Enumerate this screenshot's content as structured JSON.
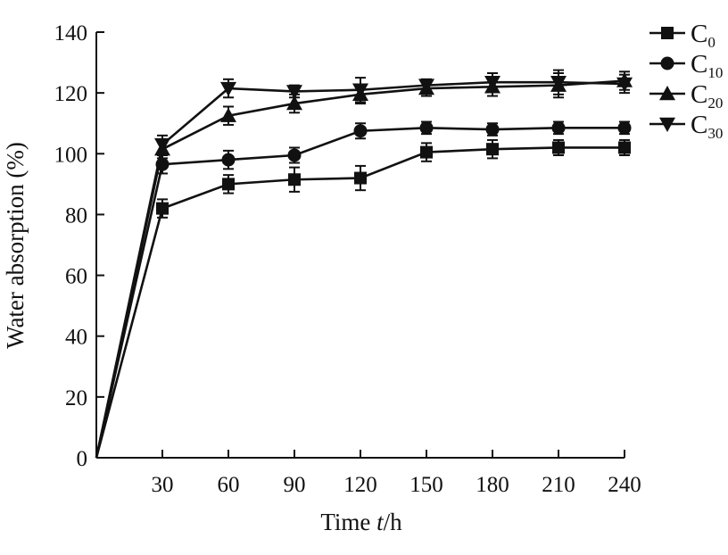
{
  "chart_data": {
    "type": "line",
    "title": "",
    "xlabel": "Time ",
    "xlabel_italic": "t",
    "xlabel_unit": "/h",
    "ylabel": "Water absorption (%)",
    "xlim": [
      0,
      240
    ],
    "ylim": [
      0,
      140
    ],
    "x_ticks": [
      30,
      60,
      90,
      120,
      150,
      180,
      210,
      240
    ],
    "y_ticks": [
      0,
      20,
      40,
      60,
      80,
      100,
      120,
      140
    ],
    "grid": false,
    "legend_position": "top-right",
    "x": [
      0,
      30,
      60,
      90,
      120,
      150,
      180,
      210,
      240
    ],
    "series": [
      {
        "name": "C0",
        "base": "C",
        "sub": "0",
        "marker": "square",
        "values": [
          0,
          82,
          90,
          91.5,
          92,
          100.5,
          101.5,
          102,
          102
        ],
        "errors": [
          0,
          3,
          3,
          4,
          4,
          3,
          3,
          2.5,
          2.5
        ]
      },
      {
        "name": "C10",
        "base": "C",
        "sub": "10",
        "marker": "circle",
        "values": [
          0,
          96.5,
          98,
          99.5,
          107.5,
          108.5,
          108,
          108.5,
          108.5
        ],
        "errors": [
          0,
          3,
          3,
          2.5,
          2.5,
          2,
          2,
          2,
          2
        ]
      },
      {
        "name": "C20",
        "base": "C",
        "sub": "20",
        "marker": "triangle-up",
        "values": [
          0,
          101.5,
          112.5,
          116.5,
          119.5,
          121.5,
          122,
          122.5,
          124
        ],
        "errors": [
          0,
          3,
          3,
          3,
          3,
          2.5,
          3,
          4,
          3
        ]
      },
      {
        "name": "C30",
        "base": "C",
        "sub": "30",
        "marker": "triangle-down",
        "values": [
          0,
          103,
          121.5,
          120.5,
          121,
          122.5,
          123.5,
          123.5,
          123
        ],
        "errors": [
          0,
          3,
          3,
          2,
          4,
          2,
          3,
          4,
          3
        ]
      }
    ]
  }
}
